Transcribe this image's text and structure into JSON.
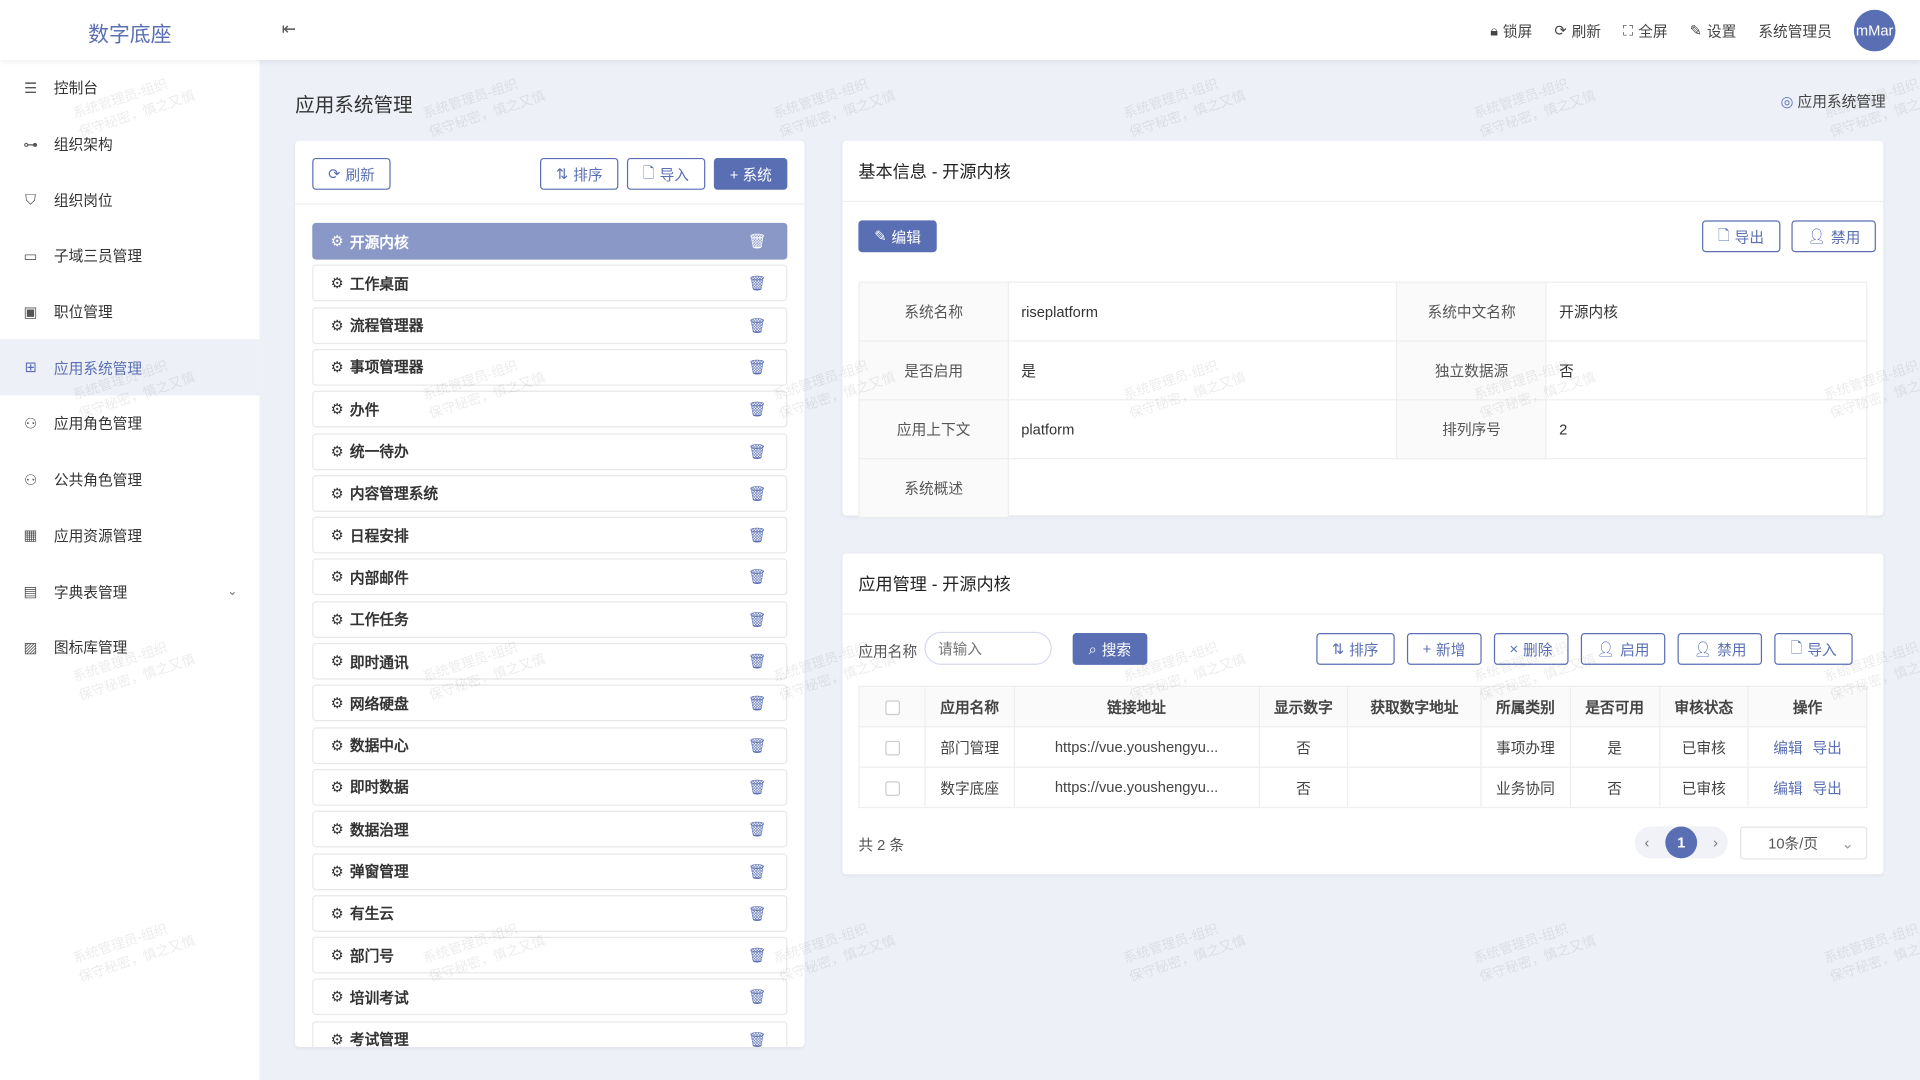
{
  "header": {
    "logo": "数字底座",
    "actions": [
      {
        "icon": "lock-icon",
        "label": "锁屏"
      },
      {
        "icon": "refresh-icon",
        "label": "刷新"
      },
      {
        "icon": "fullscreen-icon",
        "label": "全屏"
      },
      {
        "icon": "edit-icon",
        "label": "设置"
      }
    ],
    "user": "系统管理员",
    "avatar": "mMar"
  },
  "sidebar": {
    "items": [
      {
        "label": "控制台",
        "icon": "sliders-icon"
      },
      {
        "label": "组织架构",
        "icon": "org-tree-icon"
      },
      {
        "label": "组织岗位",
        "icon": "shield-user-icon"
      },
      {
        "label": "子域三员管理",
        "icon": "window-icon"
      },
      {
        "label": "职位管理",
        "icon": "id-card-icon"
      },
      {
        "label": "应用系统管理",
        "icon": "apps-icon",
        "active": true
      },
      {
        "label": "应用角色管理",
        "icon": "user-role-icon"
      },
      {
        "label": "公共角色管理",
        "icon": "user-role-icon"
      },
      {
        "label": "应用资源管理",
        "icon": "grid-icon"
      },
      {
        "label": "字典表管理",
        "icon": "book-icon",
        "expandable": true
      },
      {
        "label": "图标库管理",
        "icon": "image-icon"
      }
    ]
  },
  "page": {
    "title": "应用系统管理",
    "breadcrumb": "应用系统管理"
  },
  "left": {
    "refresh": "刷新",
    "sort": "排序",
    "import": "导入",
    "add": "+ 系统",
    "systems": [
      "开源内核",
      "工作桌面",
      "流程管理器",
      "事项管理器",
      "办件",
      "统一待办",
      "内容管理系统",
      "日程安排",
      "内部邮件",
      "工作任务",
      "即时通讯",
      "网络硬盘",
      "数据中心",
      "即时数据",
      "数据治理",
      "弹窗管理",
      "有生云",
      "部门号",
      "培训考试",
      "考试管理"
    ],
    "selected": 0
  },
  "info": {
    "title": "基本信息 - 开源内核",
    "edit": "编辑",
    "export": "导出",
    "disable": "禁用",
    "rows": [
      [
        "系统名称",
        "riseplatform",
        "系统中文名称",
        "开源内核"
      ],
      [
        "是否启用",
        "是",
        "独立数据源",
        "否"
      ],
      [
        "应用上下文",
        "platform",
        "排列序号",
        "2"
      ]
    ],
    "desc_label": "系统概述",
    "desc": ""
  },
  "apps": {
    "title": "应用管理 - 开源内核",
    "filter_label": "应用名称",
    "placeholder": "请输入",
    "search": "搜索",
    "sort": "排序",
    "add": "新增",
    "delete": "删除",
    "enable": "启用",
    "disable": "禁用",
    "import": "导入",
    "columns": [
      "应用名称",
      "链接地址",
      "显示数字",
      "获取数字地址",
      "所属类别",
      "是否可用",
      "审核状态",
      "操作"
    ],
    "rows": [
      [
        "部门管理",
        "https://vue.youshengyu...",
        "否",
        "",
        "事项办理",
        "是",
        "已审核"
      ],
      [
        "数字底座",
        "https://vue.youshengyu...",
        "否",
        "",
        "业务协同",
        "否",
        "已审核"
      ]
    ],
    "row_actions": [
      "编辑",
      "导出"
    ],
    "total": "共 2 条",
    "page": "1",
    "page_size": "10条/页"
  },
  "watermark": [
    "系统管理员-组织",
    "保守秘密，慎之又慎"
  ],
  "colors": {
    "accent": "#5a6fb3",
    "selected": "#8a98c8",
    "background": "#edf0f7"
  }
}
